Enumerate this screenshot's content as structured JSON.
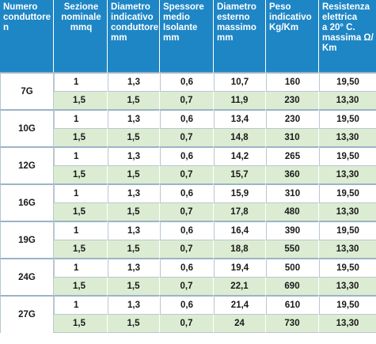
{
  "headers": [
    "Numero\nconduttore\nn",
    "Sezione\nnominale\nmmq",
    "Diametro\nindicativo\nconduttore\nmm",
    "Spessore\nmedio\nIsolante\nmm",
    "Diametro\nesterno\nmassimo\nmm",
    "Peso\nindicativo\nKg/Km",
    "Resistenza\nelettrica\na 20° C.\nmassima Ω/\nKm"
  ],
  "groups": [
    {
      "label": "7G",
      "rows": [
        [
          "1",
          "1,3",
          "0,6",
          "10,7",
          "160",
          "19,50"
        ],
        [
          "1,5",
          "1,5",
          "0,7",
          "11,9",
          "230",
          "13,30"
        ]
      ]
    },
    {
      "label": "10G",
      "rows": [
        [
          "1",
          "1,3",
          "0,6",
          "13,4",
          "230",
          "19,50"
        ],
        [
          "1,5",
          "1,5",
          "0,7",
          "14,8",
          "310",
          "13,30"
        ]
      ]
    },
    {
      "label": "12G",
      "rows": [
        [
          "1",
          "1,3",
          "0,6",
          "14,2",
          "265",
          "19,50"
        ],
        [
          "1,5",
          "1,5",
          "0,7",
          "15,7",
          "360",
          "13,30"
        ]
      ]
    },
    {
      "label": "16G",
      "rows": [
        [
          "1",
          "1,3",
          "0,6",
          "15,9",
          "310",
          "19,50"
        ],
        [
          "1,5",
          "1,5",
          "0,7",
          "17,8",
          "480",
          "13,30"
        ]
      ]
    },
    {
      "label": "19G",
      "rows": [
        [
          "1",
          "1,3",
          "0,6",
          "16,4",
          "390",
          "19,50"
        ],
        [
          "1,5",
          "1,5",
          "0,7",
          "18,8",
          "550",
          "13,30"
        ]
      ]
    },
    {
      "label": "24G",
      "rows": [
        [
          "1",
          "1,3",
          "0,6",
          "19,4",
          "500",
          "19,50"
        ],
        [
          "1,5",
          "1,5",
          "0,7",
          "22,1",
          "690",
          "13,30"
        ]
      ]
    },
    {
      "label": "27G",
      "rows": [
        [
          "1",
          "1,3",
          "0,6",
          "21,4",
          "610",
          "19,50"
        ],
        [
          "1,5",
          "1,5",
          "0,7",
          "24",
          "730",
          "13,30"
        ]
      ]
    }
  ]
}
